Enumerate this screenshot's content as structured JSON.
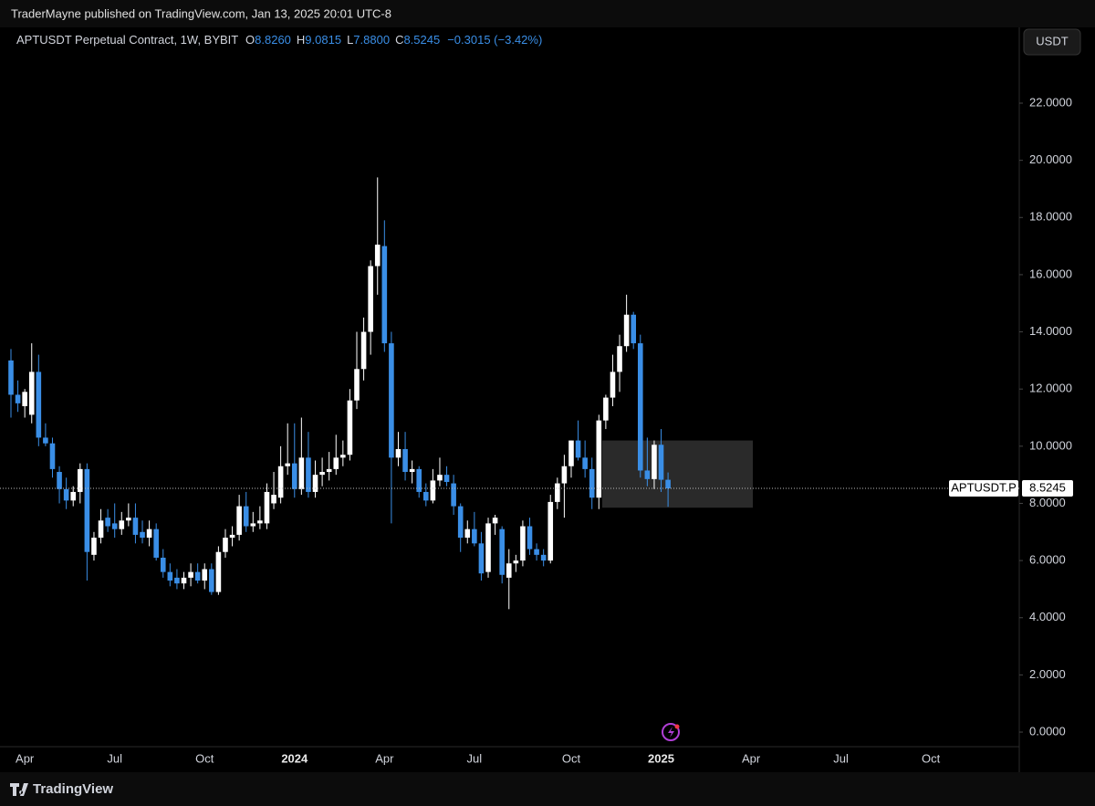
{
  "header": {
    "publisher": "TraderMayne published on TradingView.com, Jan 13, 2025 20:01 UTC-8",
    "currency": "USDT",
    "footer": "TradingView"
  },
  "legend": {
    "symbol": "APTUSDT Perpetual Contract, 1W, BYBIT",
    "o_key": "O",
    "o": "8.8260",
    "h_key": "H",
    "h": "9.0815",
    "l_key": "L",
    "l": "7.8800",
    "c_key": "C",
    "c": "8.5245",
    "change": "−0.3015 (−3.42%)"
  },
  "chart_data": {
    "type": "candlestick",
    "categories": [
      null,
      null,
      "Apr",
      null,
      null,
      null,
      null,
      null,
      null,
      null,
      null,
      null,
      null,
      null,
      null,
      "Jul",
      null,
      null,
      null,
      null,
      null,
      null,
      null,
      null,
      null,
      null,
      null,
      null,
      "Oct",
      null,
      null,
      null,
      null,
      null,
      null,
      null,
      null,
      null,
      null,
      null,
      null,
      "2024",
      null,
      null,
      null,
      null,
      null,
      null,
      null,
      null,
      null,
      null,
      null,
      null,
      "Apr",
      null,
      null,
      null,
      null,
      null,
      null,
      null,
      null,
      null,
      null,
      null,
      null,
      "Jul",
      null,
      null,
      null,
      null,
      null,
      null,
      null,
      null,
      null,
      null,
      null,
      null,
      null,
      "Oct",
      null,
      null,
      null,
      null,
      null,
      null,
      null,
      null,
      null,
      null,
      null,
      null,
      "2025",
      null,
      null,
      null,
      null,
      null,
      null,
      null,
      null,
      null,
      null,
      null,
      null,
      "Apr",
      null,
      null,
      null,
      null,
      null,
      null,
      null,
      null,
      null,
      null,
      null,
      null,
      "Jul",
      null,
      null,
      null,
      null,
      null,
      null,
      null,
      null,
      null,
      null,
      null,
      null,
      "Oct",
      null,
      null,
      null,
      null,
      null,
      null,
      null,
      null,
      null,
      null,
      null
    ],
    "open": [
      13.0,
      11.8,
      11.4,
      11.1,
      12.6,
      10.3,
      10.1,
      9.1,
      8.5,
      8.1,
      8.4,
      9.2,
      6.2,
      6.8,
      7.5,
      7.3,
      7.1,
      7.4,
      7.5,
      7.0,
      6.8,
      7.1,
      6.1,
      5.6,
      5.4,
      5.2,
      5.4,
      5.6,
      5.3,
      5.7,
      4.9,
      6.3,
      6.8,
      6.9,
      7.9,
      7.2,
      7.3,
      7.3,
      8.0,
      8.2,
      9.3,
      9.4,
      8.5,
      9.6,
      8.4,
      9.0,
      9.1,
      9.2,
      9.6,
      9.7,
      11.6,
      12.7,
      14.0,
      16.3,
      17.0,
      13.6,
      9.6,
      9.9,
      9.1,
      9.2,
      8.4,
      8.1,
      8.8,
      9.0,
      8.7,
      7.9,
      6.8,
      7.1,
      6.6,
      5.6,
      7.3,
      7.1,
      5.4,
      5.9,
      6.0,
      7.2,
      6.4,
      6.2,
      6.0,
      8.05,
      8.7,
      9.3,
      10.2,
      9.6,
      9.2,
      8.2,
      10.9,
      11.7,
      12.6,
      13.5,
      14.6,
      13.6,
      9.15,
      8.85,
      10.05,
      8.826,
      null,
      null,
      null,
      null,
      null,
      null,
      null,
      null,
      null,
      null,
      null,
      null,
      null,
      null,
      null,
      null,
      null,
      null,
      null,
      null,
      null,
      null,
      null,
      null,
      null,
      null,
      null,
      null,
      null,
      null,
      null,
      null,
      null,
      null,
      null,
      null,
      null,
      null,
      null,
      null,
      null,
      null,
      null,
      null,
      null,
      null,
      null,
      null,
      null
    ],
    "high": [
      13.4,
      12.3,
      12.0,
      13.6,
      13.2,
      10.8,
      10.3,
      9.3,
      8.9,
      8.6,
      9.4,
      9.4,
      7.0,
      7.8,
      7.8,
      8.0,
      7.7,
      8.0,
      8.0,
      7.4,
      7.4,
      7.3,
      6.4,
      5.9,
      5.7,
      5.6,
      5.9,
      5.9,
      5.9,
      5.9,
      6.5,
      7.1,
      7.2,
      8.3,
      8.4,
      7.7,
      7.9,
      8.7,
      9.1,
      10.0,
      10.8,
      10.8,
      11.0,
      10.5,
      9.5,
      9.6,
      9.8,
      10.4,
      10.2,
      12.0,
      14.0,
      14.5,
      16.5,
      19.4,
      17.9,
      14.0,
      10.5,
      10.5,
      9.5,
      9.3,
      8.7,
      9.2,
      9.6,
      9.3,
      9.0,
      8.0,
      7.4,
      7.7,
      7.0,
      7.5,
      7.6,
      7.2,
      6.4,
      6.2,
      7.4,
      7.5,
      6.6,
      6.4,
      8.3,
      8.9,
      9.7,
      10.2,
      10.9,
      10.2,
      9.6,
      11.1,
      11.8,
      13.2,
      13.9,
      15.3,
      14.7,
      13.9,
      10.3,
      10.2,
      10.6,
      9.0815,
      null,
      null,
      null,
      null,
      null,
      null,
      null,
      null,
      null,
      null,
      null,
      null,
      null,
      null,
      null,
      null,
      null,
      null,
      null,
      null,
      null,
      null,
      null,
      null,
      null,
      null,
      null,
      null,
      null,
      null,
      null,
      null,
      null,
      null,
      null,
      null,
      null,
      null,
      null,
      null,
      null,
      null,
      null,
      null,
      null,
      null,
      null,
      null,
      null
    ],
    "low": [
      11.0,
      11.2,
      11.0,
      10.8,
      10.0,
      10.0,
      8.9,
      8.0,
      7.8,
      7.9,
      8.0,
      5.3,
      6.0,
      6.6,
      7.0,
      6.8,
      6.9,
      7.2,
      6.6,
      6.6,
      6.5,
      6.0,
      5.4,
      5.1,
      5.0,
      5.0,
      5.1,
      5.2,
      5.0,
      4.8,
      4.8,
      6.1,
      6.5,
      6.7,
      7.0,
      7.0,
      7.1,
      7.1,
      7.8,
      8.0,
      9.0,
      8.2,
      8.3,
      8.2,
      8.2,
      8.6,
      8.8,
      9.0,
      9.3,
      9.5,
      11.3,
      12.3,
      13.2,
      15.3,
      13.3,
      7.3,
      9.3,
      8.8,
      8.7,
      8.2,
      7.9,
      8.0,
      8.6,
      8.6,
      7.6,
      6.3,
      6.6,
      6.5,
      5.3,
      5.4,
      6.9,
      5.2,
      4.3,
      5.6,
      5.8,
      6.2,
      6.0,
      5.8,
      5.9,
      7.8,
      7.5,
      8.9,
      9.5,
      8.9,
      7.8,
      7.8,
      10.6,
      11.4,
      11.9,
      13.3,
      13.4,
      8.9,
      8.6,
      8.5,
      8.4,
      7.88,
      null,
      null,
      null,
      null,
      null,
      null,
      null,
      null,
      null,
      null,
      null,
      null,
      null,
      null,
      null,
      null,
      null,
      null,
      null,
      null,
      null,
      null,
      null,
      null,
      null,
      null,
      null,
      null,
      null,
      null,
      null,
      null,
      null,
      null,
      null,
      null,
      null,
      null,
      null,
      null,
      null,
      null,
      null,
      null,
      null,
      null,
      null,
      null,
      null
    ],
    "close": [
      11.8,
      11.5,
      11.9,
      12.6,
      10.3,
      10.1,
      9.2,
      8.5,
      8.1,
      8.4,
      9.2,
      6.3,
      6.8,
      7.4,
      7.2,
      7.1,
      7.4,
      7.5,
      6.9,
      6.8,
      7.1,
      6.1,
      5.6,
      5.3,
      5.2,
      5.4,
      5.6,
      5.3,
      5.7,
      4.9,
      6.3,
      6.8,
      6.9,
      7.9,
      7.2,
      7.3,
      7.4,
      8.4,
      8.3,
      9.3,
      9.4,
      8.5,
      9.6,
      8.4,
      9.0,
      9.1,
      9.2,
      9.6,
      9.7,
      11.6,
      12.7,
      14.0,
      16.3,
      17.05,
      13.6,
      9.6,
      9.9,
      9.1,
      9.2,
      8.4,
      8.1,
      8.8,
      9.0,
      8.75,
      7.9,
      6.8,
      7.1,
      6.6,
      5.55,
      7.3,
      7.5,
      5.5,
      5.9,
      6.0,
      7.2,
      6.4,
      6.2,
      6.0,
      8.05,
      8.7,
      9.3,
      10.2,
      9.6,
      9.2,
      8.2,
      10.9,
      11.7,
      12.6,
      13.5,
      14.6,
      13.6,
      9.15,
      8.85,
      10.05,
      8.826,
      8.5245,
      null,
      null,
      null,
      null,
      null,
      null,
      null,
      null,
      null,
      null,
      null,
      null,
      null,
      null,
      null,
      null,
      null,
      null,
      null,
      null,
      null,
      null,
      null,
      null,
      null,
      null,
      null,
      null,
      null,
      null,
      null,
      null,
      null,
      null,
      null,
      null,
      null,
      null,
      null,
      null,
      null,
      null,
      null,
      null,
      null,
      null,
      null,
      null,
      null
    ],
    "up_color": "#ffffff",
    "down_color": "#3a8ee6",
    "ylim": [
      -0.51,
      24.65
    ],
    "yticks": [
      {
        "value": 0,
        "label": "0.0000"
      },
      {
        "value": 2,
        "label": "2.0000"
      },
      {
        "value": 4,
        "label": "4.0000"
      },
      {
        "value": 6,
        "label": "6.0000"
      },
      {
        "value": 8,
        "label": "8.0000"
      },
      {
        "value": 10,
        "label": "10.0000"
      },
      {
        "value": 12,
        "label": "12.0000"
      },
      {
        "value": 14,
        "label": "14.0000"
      },
      {
        "value": 16,
        "label": "16.0000"
      },
      {
        "value": 18,
        "label": "18.0000"
      },
      {
        "value": 20,
        "label": "20.0000"
      },
      {
        "value": 22,
        "label": "22.0000"
      }
    ],
    "zone": {
      "top": 10.2,
      "bottom": 7.85
    },
    "last_price": {
      "name": "APTUSDT.P",
      "value": 8.5245,
      "label": "8.5245"
    }
  }
}
